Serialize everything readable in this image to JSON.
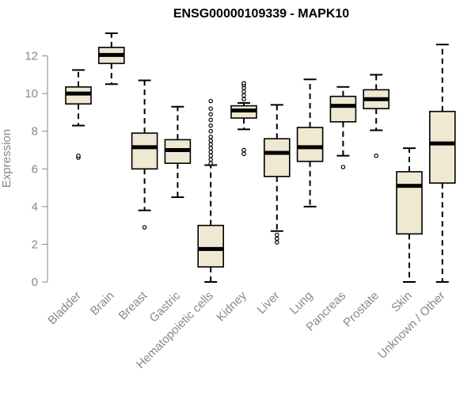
{
  "chart_data": {
    "type": "boxplot",
    "title": "ENSG00000109339 - MAPK10",
    "xlabel": "",
    "ylabel": "Expression",
    "ylim": [
      0,
      13.2
    ],
    "yticks": [
      0,
      2,
      4,
      6,
      8,
      10,
      12
    ],
    "colors": {
      "box_fill": "#efe8d2",
      "stroke": "#000000",
      "axis": "#888888"
    },
    "categories": [
      "Bladder",
      "Brain",
      "Breast",
      "Gastric",
      "Hematopoietic cells",
      "Kidney",
      "Liver",
      "Lung",
      "Pancreas",
      "Prostate",
      "Skin",
      "Unknown / Other"
    ],
    "boxes": [
      {
        "name": "Bladder",
        "whisker_low": 8.3,
        "q1": 9.45,
        "median": 10.0,
        "q3": 10.35,
        "whisker_high": 11.25,
        "outliers": [
          6.6,
          6.7
        ]
      },
      {
        "name": "Brain",
        "whisker_low": 10.5,
        "q1": 11.6,
        "median": 12.05,
        "q3": 12.45,
        "whisker_high": 13.2,
        "outliers": []
      },
      {
        "name": "Breast",
        "whisker_low": 3.8,
        "q1": 6.0,
        "median": 7.15,
        "q3": 7.9,
        "whisker_high": 10.7,
        "outliers": [
          2.9
        ]
      },
      {
        "name": "Gastric",
        "whisker_low": 4.5,
        "q1": 6.3,
        "median": 7.0,
        "q3": 7.55,
        "whisker_high": 9.3,
        "outliers": []
      },
      {
        "name": "Hematopoietic cells",
        "whisker_low": 0.0,
        "q1": 0.8,
        "median": 1.75,
        "q3": 3.0,
        "whisker_high": 6.2,
        "outliers": [
          6.3,
          6.5,
          6.7,
          6.9,
          7.1,
          7.3,
          7.5,
          7.7,
          8.0,
          8.3,
          8.6,
          8.9,
          9.2,
          9.6
        ]
      },
      {
        "name": "Kidney",
        "whisker_low": 8.1,
        "q1": 8.7,
        "median": 9.1,
        "q3": 9.35,
        "whisker_high": 9.5,
        "outliers": [
          6.8,
          7.0,
          9.7,
          9.9,
          10.1,
          10.3,
          10.45,
          10.55
        ]
      },
      {
        "name": "Liver",
        "whisker_low": 2.7,
        "q1": 5.6,
        "median": 6.85,
        "q3": 7.6,
        "whisker_high": 9.4,
        "outliers": [
          2.1,
          2.3,
          2.5
        ]
      },
      {
        "name": "Lung",
        "whisker_low": 4.0,
        "q1": 6.4,
        "median": 7.15,
        "q3": 8.2,
        "whisker_high": 10.75,
        "outliers": []
      },
      {
        "name": "Pancreas",
        "whisker_low": 6.7,
        "q1": 8.5,
        "median": 9.35,
        "q3": 9.85,
        "whisker_high": 10.35,
        "outliers": [
          6.1
        ]
      },
      {
        "name": "Prostate",
        "whisker_low": 8.05,
        "q1": 9.2,
        "median": 9.7,
        "q3": 10.2,
        "whisker_high": 11.0,
        "outliers": [
          6.7
        ]
      },
      {
        "name": "Skin",
        "whisker_low": 0.0,
        "q1": 2.55,
        "median": 5.1,
        "q3": 5.85,
        "whisker_high": 7.1,
        "outliers": []
      },
      {
        "name": "Unknown / Other",
        "whisker_low": 0.0,
        "q1": 5.25,
        "median": 7.35,
        "q3": 9.05,
        "whisker_high": 12.6,
        "outliers": []
      }
    ]
  }
}
